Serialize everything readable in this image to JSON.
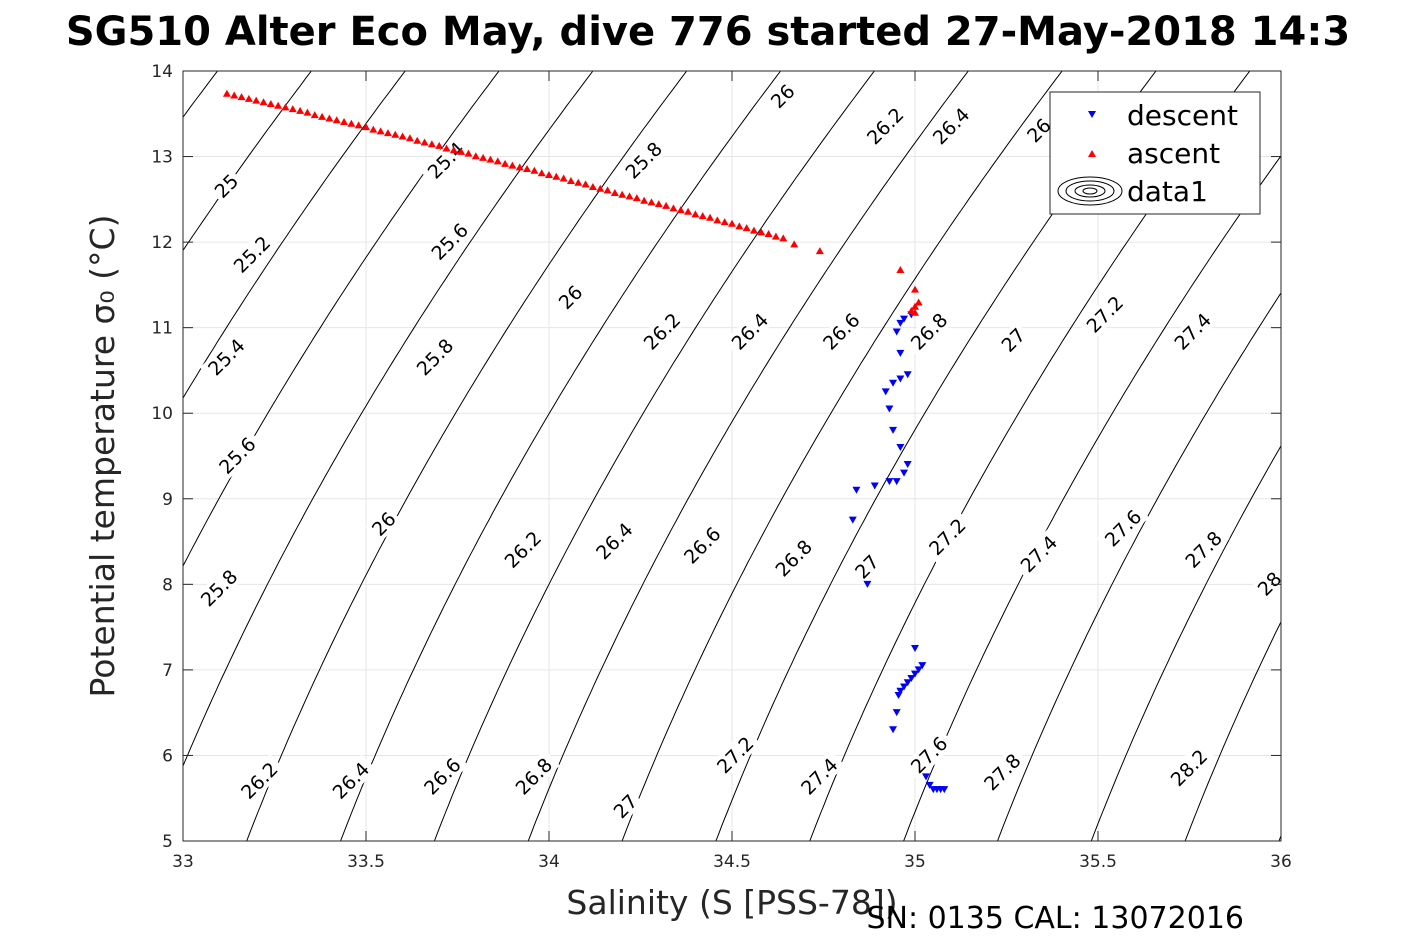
{
  "chart_data": {
    "type": "scatter",
    "title": "SG510 Alter Eco May, dive 776 started 27-May-2018 14:3",
    "xlabel": "Salinity (S [PSS-78])",
    "ylabel": "Potential temperature σ₀ (°C)",
    "footer": "SN: 0135  CAL: 13072016",
    "xlim": [
      33,
      36
    ],
    "ylim": [
      5,
      14
    ],
    "xticks": [
      33,
      33.5,
      34,
      34.5,
      35,
      35.5,
      36
    ],
    "yticks": [
      5,
      6,
      7,
      8,
      9,
      10,
      11,
      12,
      13,
      14
    ],
    "xtick_labels": [
      "33",
      "33.5",
      "34",
      "34.5",
      "35",
      "35.5",
      "36"
    ],
    "ytick_labels": [
      "5",
      "6",
      "7",
      "8",
      "9",
      "10",
      "11",
      "12",
      "13",
      "14"
    ],
    "grid": true,
    "legend_position": "top-right",
    "legend": [
      {
        "label": "descent",
        "marker": "triangle-down",
        "color": "#0000ff"
      },
      {
        "label": "ascent",
        "marker": "triangle-up",
        "color": "#ff0000"
      },
      {
        "label": "data1",
        "marker": "contour",
        "color": "#000000"
      }
    ],
    "contours": {
      "levels": [
        25,
        25.2,
        25.4,
        25.6,
        25.8,
        26,
        26.2,
        26.4,
        26.6,
        26.8,
        27,
        27.2,
        27.4,
        27.6,
        27.8,
        28,
        28.2
      ],
      "labels": [
        {
          "text": "25",
          "x": 33.12,
          "y": 12.65
        },
        {
          "text": "25.2",
          "x": 33.19,
          "y": 11.85
        },
        {
          "text": "25.4",
          "x": 33.12,
          "y": 10.65
        },
        {
          "text": "25.6",
          "x": 33.15,
          "y": 9.5
        },
        {
          "text": "25.8",
          "x": 33.1,
          "y": 7.95
        },
        {
          "text": "25.4",
          "x": 33.72,
          "y": 12.95
        },
        {
          "text": "25.6",
          "x": 33.73,
          "y": 12.0
        },
        {
          "text": "25.8",
          "x": 33.69,
          "y": 10.65
        },
        {
          "text": "26",
          "x": 33.55,
          "y": 8.7
        },
        {
          "text": "26.2",
          "x": 33.21,
          "y": 5.7
        },
        {
          "text": "26.4",
          "x": 33.46,
          "y": 5.7
        },
        {
          "text": "26.6",
          "x": 33.71,
          "y": 5.75
        },
        {
          "text": "26.8",
          "x": 33.96,
          "y": 5.75
        },
        {
          "text": "27",
          "x": 34.21,
          "y": 5.4
        },
        {
          "text": "27.2",
          "x": 34.51,
          "y": 6.0
        },
        {
          "text": "27.4",
          "x": 34.74,
          "y": 5.75
        },
        {
          "text": "27.6",
          "x": 35.04,
          "y": 6.0
        },
        {
          "text": "27.8",
          "x": 35.24,
          "y": 5.8
        },
        {
          "text": "28.2",
          "x": 35.75,
          "y": 5.85
        },
        {
          "text": "26.2",
          "x": 33.93,
          "y": 8.4
        },
        {
          "text": "26.4",
          "x": 34.18,
          "y": 8.5
        },
        {
          "text": "26.6",
          "x": 34.42,
          "y": 8.45
        },
        {
          "text": "26.8",
          "x": 34.67,
          "y": 8.3
        },
        {
          "text": "27",
          "x": 34.87,
          "y": 8.2
        },
        {
          "text": "27.2",
          "x": 35.09,
          "y": 8.55
        },
        {
          "text": "27.4",
          "x": 35.34,
          "y": 8.35
        },
        {
          "text": "27.6",
          "x": 35.57,
          "y": 8.65
        },
        {
          "text": "27.8",
          "x": 35.79,
          "y": 8.4
        },
        {
          "text": "28",
          "x": 35.97,
          "y": 8.0
        },
        {
          "text": "26",
          "x": 34.06,
          "y": 11.35
        },
        {
          "text": "26.2",
          "x": 34.31,
          "y": 10.95
        },
        {
          "text": "26.4",
          "x": 34.55,
          "y": 10.95
        },
        {
          "text": "26.6",
          "x": 34.8,
          "y": 10.95
        },
        {
          "text": "26.8",
          "x": 35.04,
          "y": 10.95
        },
        {
          "text": "27",
          "x": 35.27,
          "y": 10.85
        },
        {
          "text": "27.2",
          "x": 35.52,
          "y": 11.15
        },
        {
          "text": "27.4",
          "x": 35.76,
          "y": 10.95
        },
        {
          "text": "25.8",
          "x": 34.26,
          "y": 12.95
        },
        {
          "text": "26",
          "x": 34.64,
          "y": 13.7
        },
        {
          "text": "26.2",
          "x": 34.92,
          "y": 13.35
        },
        {
          "text": "26.4",
          "x": 35.1,
          "y": 13.35
        },
        {
          "text": "26",
          "x": 35.34,
          "y": 13.3
        }
      ]
    },
    "series": [
      {
        "name": "descent",
        "marker": "triangle-down",
        "color": "#0000ff",
        "x": [
          35.05,
          35.06,
          35.07,
          35.08,
          35.04,
          35.03,
          35.02,
          35.01,
          35.0,
          34.99,
          34.98,
          34.97,
          34.96,
          34.955,
          34.95,
          34.94,
          35.0,
          34.87,
          34.83,
          34.84,
          34.89,
          34.93,
          34.95,
          34.97,
          34.98,
          34.96,
          34.94,
          34.93,
          34.92,
          34.94,
          34.96,
          34.98,
          34.96,
          34.95,
          34.96,
          34.97,
          34.99
        ],
        "y": [
          5.6,
          5.6,
          5.6,
          5.6,
          5.65,
          5.75,
          7.05,
          7.0,
          6.95,
          6.9,
          6.85,
          6.8,
          6.75,
          6.7,
          6.5,
          6.3,
          7.25,
          8.0,
          8.75,
          9.1,
          9.15,
          9.2,
          9.2,
          9.3,
          9.4,
          9.6,
          9.8,
          10.05,
          10.25,
          10.35,
          10.4,
          10.45,
          10.7,
          10.95,
          11.05,
          11.1,
          11.15
        ]
      },
      {
        "name": "ascent",
        "marker": "triangle-up",
        "color": "#ff0000",
        "x": [
          33.12,
          33.14,
          33.16,
          33.18,
          33.2,
          33.22,
          33.24,
          33.26,
          33.28,
          33.3,
          33.32,
          33.34,
          33.36,
          33.38,
          33.4,
          33.42,
          33.44,
          33.46,
          33.48,
          33.5,
          33.52,
          33.54,
          33.56,
          33.58,
          33.6,
          33.62,
          33.64,
          33.66,
          33.68,
          33.7,
          33.72,
          33.74,
          33.76,
          33.78,
          33.8,
          33.82,
          33.84,
          33.86,
          33.88,
          33.9,
          33.92,
          33.94,
          33.96,
          33.98,
          34.0,
          34.02,
          34.04,
          34.06,
          34.08,
          34.1,
          34.12,
          34.14,
          34.16,
          34.18,
          34.2,
          34.22,
          34.24,
          34.26,
          34.28,
          34.3,
          34.32,
          34.34,
          34.36,
          34.38,
          34.4,
          34.42,
          34.44,
          34.46,
          34.48,
          34.5,
          34.52,
          34.54,
          34.56,
          34.58,
          34.6,
          34.62,
          34.64,
          34.67,
          34.74,
          34.96,
          35.0,
          35.01,
          35.0,
          34.99,
          35.0
        ],
        "y": [
          13.74,
          13.72,
          13.7,
          13.68,
          13.66,
          13.64,
          13.62,
          13.6,
          13.58,
          13.56,
          13.54,
          13.52,
          13.49,
          13.47,
          13.45,
          13.43,
          13.41,
          13.39,
          13.37,
          13.35,
          13.32,
          13.3,
          13.28,
          13.26,
          13.24,
          13.22,
          13.19,
          13.17,
          13.15,
          13.13,
          13.1,
          13.08,
          13.06,
          13.04,
          13.01,
          12.99,
          12.97,
          12.95,
          12.92,
          12.9,
          12.88,
          12.86,
          12.84,
          12.81,
          12.79,
          12.77,
          12.75,
          12.72,
          12.7,
          12.68,
          12.65,
          12.63,
          12.61,
          12.58,
          12.56,
          12.54,
          12.52,
          12.49,
          12.47,
          12.45,
          12.43,
          12.4,
          12.38,
          12.36,
          12.33,
          12.31,
          12.29,
          12.26,
          12.24,
          12.22,
          12.19,
          12.17,
          12.14,
          12.12,
          12.1,
          12.07,
          12.05,
          11.98,
          11.9,
          11.68,
          11.45,
          11.3,
          11.25,
          11.2,
          11.18
        ]
      }
    ]
  }
}
